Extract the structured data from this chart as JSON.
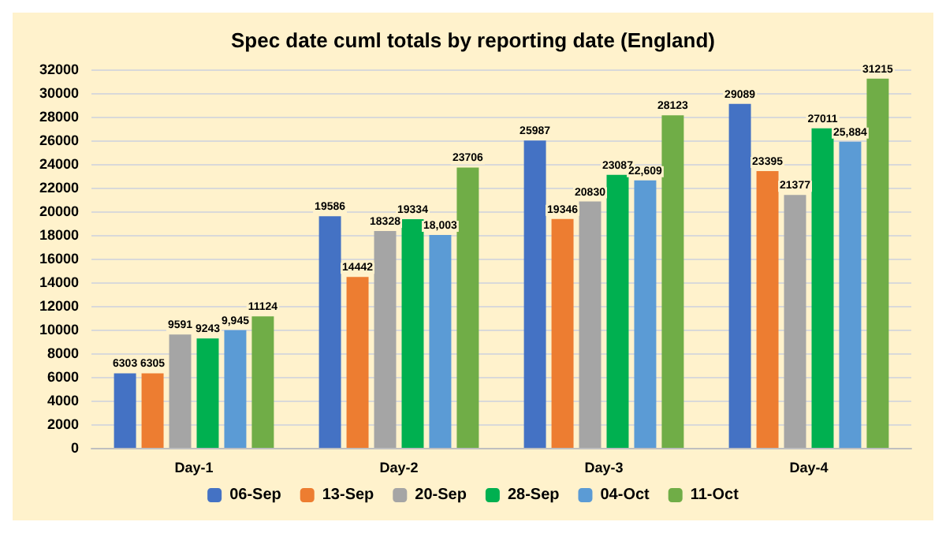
{
  "chart_data": {
    "type": "bar",
    "title": "Spec date cuml totals by reporting date (England)",
    "categories": [
      "Day-1",
      "Day-2",
      "Day-3",
      "Day-4"
    ],
    "series": [
      {
        "name": "06-Sep",
        "color": "#4472c4",
        "values": [
          6303,
          19586,
          25987,
          29089
        ],
        "value_labels": [
          "6303",
          "19586",
          "25987",
          "29089"
        ]
      },
      {
        "name": "13-Sep",
        "color": "#ed7d31",
        "values": [
          6305,
          14442,
          19346,
          23395
        ],
        "value_labels": [
          "6305",
          "14442",
          "19346",
          "23395"
        ]
      },
      {
        "name": "20-Sep",
        "color": "#a5a5a5",
        "values": [
          9591,
          18328,
          20830,
          21377
        ],
        "value_labels": [
          "9591",
          "18328",
          "20830",
          "21377"
        ]
      },
      {
        "name": "28-Sep",
        "color": "#00b050",
        "values": [
          9243,
          19334,
          23087,
          27011
        ],
        "value_labels": [
          "9243",
          "19334",
          "23087",
          "27011"
        ]
      },
      {
        "name": "04-Oct",
        "color": "#5b9bd5",
        "values": [
          9945,
          18003,
          22609,
          25884
        ],
        "value_labels": [
          "9,945",
          "18,003",
          "22,609",
          "25,884"
        ]
      },
      {
        "name": "11-Oct",
        "color": "#70ad47",
        "values": [
          11124,
          23706,
          28123,
          31215
        ],
        "value_labels": [
          "11124",
          "23706",
          "28123",
          "31215"
        ]
      }
    ],
    "ylim": [
      0,
      32000
    ],
    "yticks": [
      0,
      2000,
      4000,
      6000,
      8000,
      10000,
      12000,
      14000,
      16000,
      18000,
      20000,
      22000,
      24000,
      26000,
      28000,
      30000,
      32000
    ],
    "grid": "y",
    "legend": "bottom"
  }
}
